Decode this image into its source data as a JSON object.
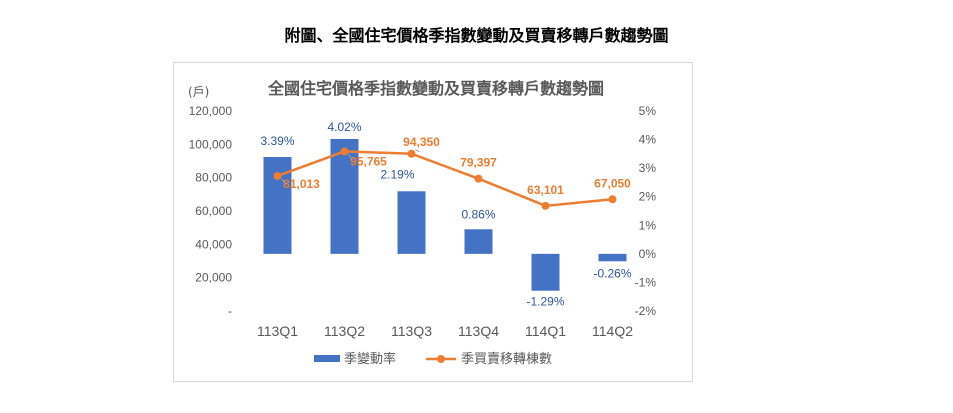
{
  "page_title": "附圖、全國住宅價格季指數變動及買賣移轉戶數趨勢圖",
  "chart_data": {
    "type": "bar+line",
    "title": "全國住宅價格季指數變動及買賣移轉戶數趨勢圖",
    "left_axis_unit": "(戶)",
    "categories": [
      "113Q1",
      "113Q2",
      "113Q3",
      "113Q4",
      "114Q1",
      "114Q2"
    ],
    "left_ticks": [
      "120,000",
      "100,000",
      "80,000",
      "60,000",
      "40,000",
      "20,000",
      "-"
    ],
    "left_ylim": [
      0,
      120000
    ],
    "right_ticks": [
      "5%",
      "4%",
      "3%",
      "2%",
      "1%",
      "0%",
      "-1%",
      "-2%"
    ],
    "right_ylim": [
      -2,
      5
    ],
    "series": [
      {
        "name": "季變動率",
        "kind": "bar",
        "axis": "right",
        "color": "#4472c4",
        "values": [
          3.39,
          4.02,
          2.19,
          0.86,
          -1.29,
          -0.26
        ],
        "labels": [
          "3.39%",
          "4.02%",
          "2.19%",
          "0.86%",
          "-1.29%",
          "-0.26%"
        ]
      },
      {
        "name": "季買賣移轉棟數",
        "kind": "line",
        "axis": "left",
        "color": "#ed7d31",
        "values": [
          81013,
          95765,
          94350,
          79397,
          63101,
          67050
        ],
        "labels": [
          "81,013",
          "95,765",
          "94,350",
          "79,397",
          "63,101",
          "67,050"
        ]
      }
    ],
    "legend_position": "bottom"
  }
}
